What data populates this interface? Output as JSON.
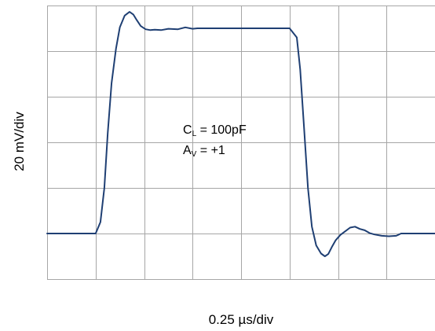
{
  "chart_data": {
    "type": "line",
    "xlabel": "0.25 µs/div",
    "ylabel": "20 mV/div",
    "x_unit": "div",
    "y_unit": "div",
    "xlim": [
      0,
      8
    ],
    "ylim": [
      0,
      6
    ],
    "grid": true,
    "colors": {
      "trace": "#1f3f73",
      "grid": "#a6a6a6"
    },
    "annotations": [
      {
        "symbol": "C",
        "sub": "L",
        "text": " = 100pF"
      },
      {
        "symbol": "A",
        "sub": "V",
        "text": " = +1"
      }
    ],
    "series": [
      {
        "x": [
          0,
          1.0,
          1.1,
          1.18,
          1.25,
          1.33,
          1.42,
          1.5,
          1.6,
          1.7,
          1.78,
          1.85,
          1.93,
          2.03,
          2.13,
          2.22,
          2.35,
          2.5,
          2.7,
          2.85,
          3.0,
          3.1,
          3.2,
          3.3,
          3.5,
          3.8,
          4.2,
          4.6,
          5.0,
          5.15,
          5.22,
          5.3,
          5.38,
          5.46,
          5.55,
          5.65,
          5.73,
          5.8,
          5.87,
          5.95,
          6.05,
          6.15,
          6.25,
          6.35,
          6.45,
          6.55,
          6.65,
          6.75,
          6.9,
          7.05,
          7.2,
          7.3,
          7.45,
          7.6,
          8.0
        ],
        "y": [
          1.0,
          1.0,
          1.25,
          2.0,
          3.2,
          4.3,
          5.05,
          5.52,
          5.78,
          5.86,
          5.8,
          5.68,
          5.55,
          5.48,
          5.46,
          5.47,
          5.46,
          5.49,
          5.48,
          5.52,
          5.49,
          5.5,
          5.5,
          5.5,
          5.5,
          5.5,
          5.5,
          5.5,
          5.5,
          5.3,
          4.6,
          3.3,
          2.0,
          1.15,
          0.74,
          0.56,
          0.5,
          0.55,
          0.7,
          0.85,
          0.97,
          1.05,
          1.13,
          1.15,
          1.1,
          1.07,
          1.01,
          0.98,
          0.95,
          0.94,
          0.95,
          1.0,
          1.0,
          1.0,
          1.0
        ]
      }
    ]
  }
}
